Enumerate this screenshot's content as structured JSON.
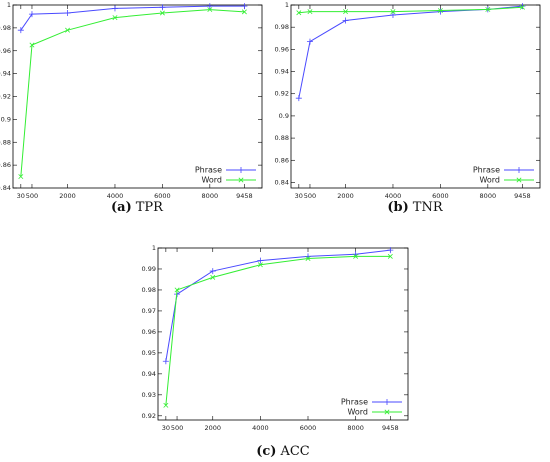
{
  "chart_data": [
    {
      "type": "line",
      "caption_label": "(a)",
      "caption": "TPR",
      "x": [
        30,
        500,
        2000,
        4000,
        6000,
        8000,
        9458
      ],
      "xlim": [
        -300,
        10200
      ],
      "xticks": [
        30,
        500,
        2000,
        4000,
        6000,
        8000,
        9458
      ],
      "ylim": [
        0.84,
        1
      ],
      "yticks": [
        0.84,
        0.86,
        0.88,
        0.9,
        0.92,
        0.94,
        0.96,
        0.98,
        1
      ],
      "legend": "lower right",
      "series": [
        {
          "name": "Phrase",
          "color": "#4a4aff",
          "marker": "plus",
          "values": [
            0.978,
            0.992,
            0.993,
            0.997,
            0.998,
            0.999,
            0.999
          ]
        },
        {
          "name": "Word",
          "color": "#33ee33",
          "marker": "cross",
          "values": [
            0.85,
            0.965,
            0.978,
            0.989,
            0.993,
            0.996,
            0.994
          ]
        }
      ]
    },
    {
      "type": "line",
      "caption_label": "(b)",
      "caption": "TNR",
      "x": [
        30,
        500,
        2000,
        4000,
        6000,
        8000,
        9458
      ],
      "xlim": [
        -300,
        10200
      ],
      "xticks": [
        30,
        500,
        2000,
        4000,
        6000,
        8000,
        9458
      ],
      "ylim": [
        0.835,
        1
      ],
      "yticks": [
        0.84,
        0.86,
        0.88,
        0.9,
        0.92,
        0.94,
        0.96,
        0.98,
        1
      ],
      "legend": "lower right",
      "series": [
        {
          "name": "Phrase",
          "color": "#4a4aff",
          "marker": "plus",
          "values": [
            0.916,
            0.967,
            0.986,
            0.991,
            0.994,
            0.996,
            0.999
          ]
        },
        {
          "name": "Word",
          "color": "#33ee33",
          "marker": "cross",
          "values": [
            0.993,
            0.994,
            0.994,
            0.994,
            0.995,
            0.996,
            0.998
          ]
        }
      ]
    },
    {
      "type": "line",
      "caption_label": "(c)",
      "caption": "ACC",
      "x": [
        30,
        500,
        2000,
        4000,
        6000,
        8000,
        9458
      ],
      "xlim": [
        -300,
        10200
      ],
      "xticks": [
        30,
        500,
        2000,
        4000,
        6000,
        8000,
        9458
      ],
      "ylim": [
        0.918,
        1
      ],
      "yticks": [
        0.92,
        0.93,
        0.94,
        0.95,
        0.96,
        0.97,
        0.98,
        0.99,
        1
      ],
      "legend": "lower right",
      "series": [
        {
          "name": "Phrase",
          "color": "#4a4aff",
          "marker": "plus",
          "values": [
            0.946,
            0.978,
            0.989,
            0.994,
            0.996,
            0.997,
            0.999
          ]
        },
        {
          "name": "Word",
          "color": "#33ee33",
          "marker": "cross",
          "values": [
            0.925,
            0.98,
            0.986,
            0.992,
            0.995,
            0.996,
            0.996
          ]
        }
      ]
    }
  ]
}
